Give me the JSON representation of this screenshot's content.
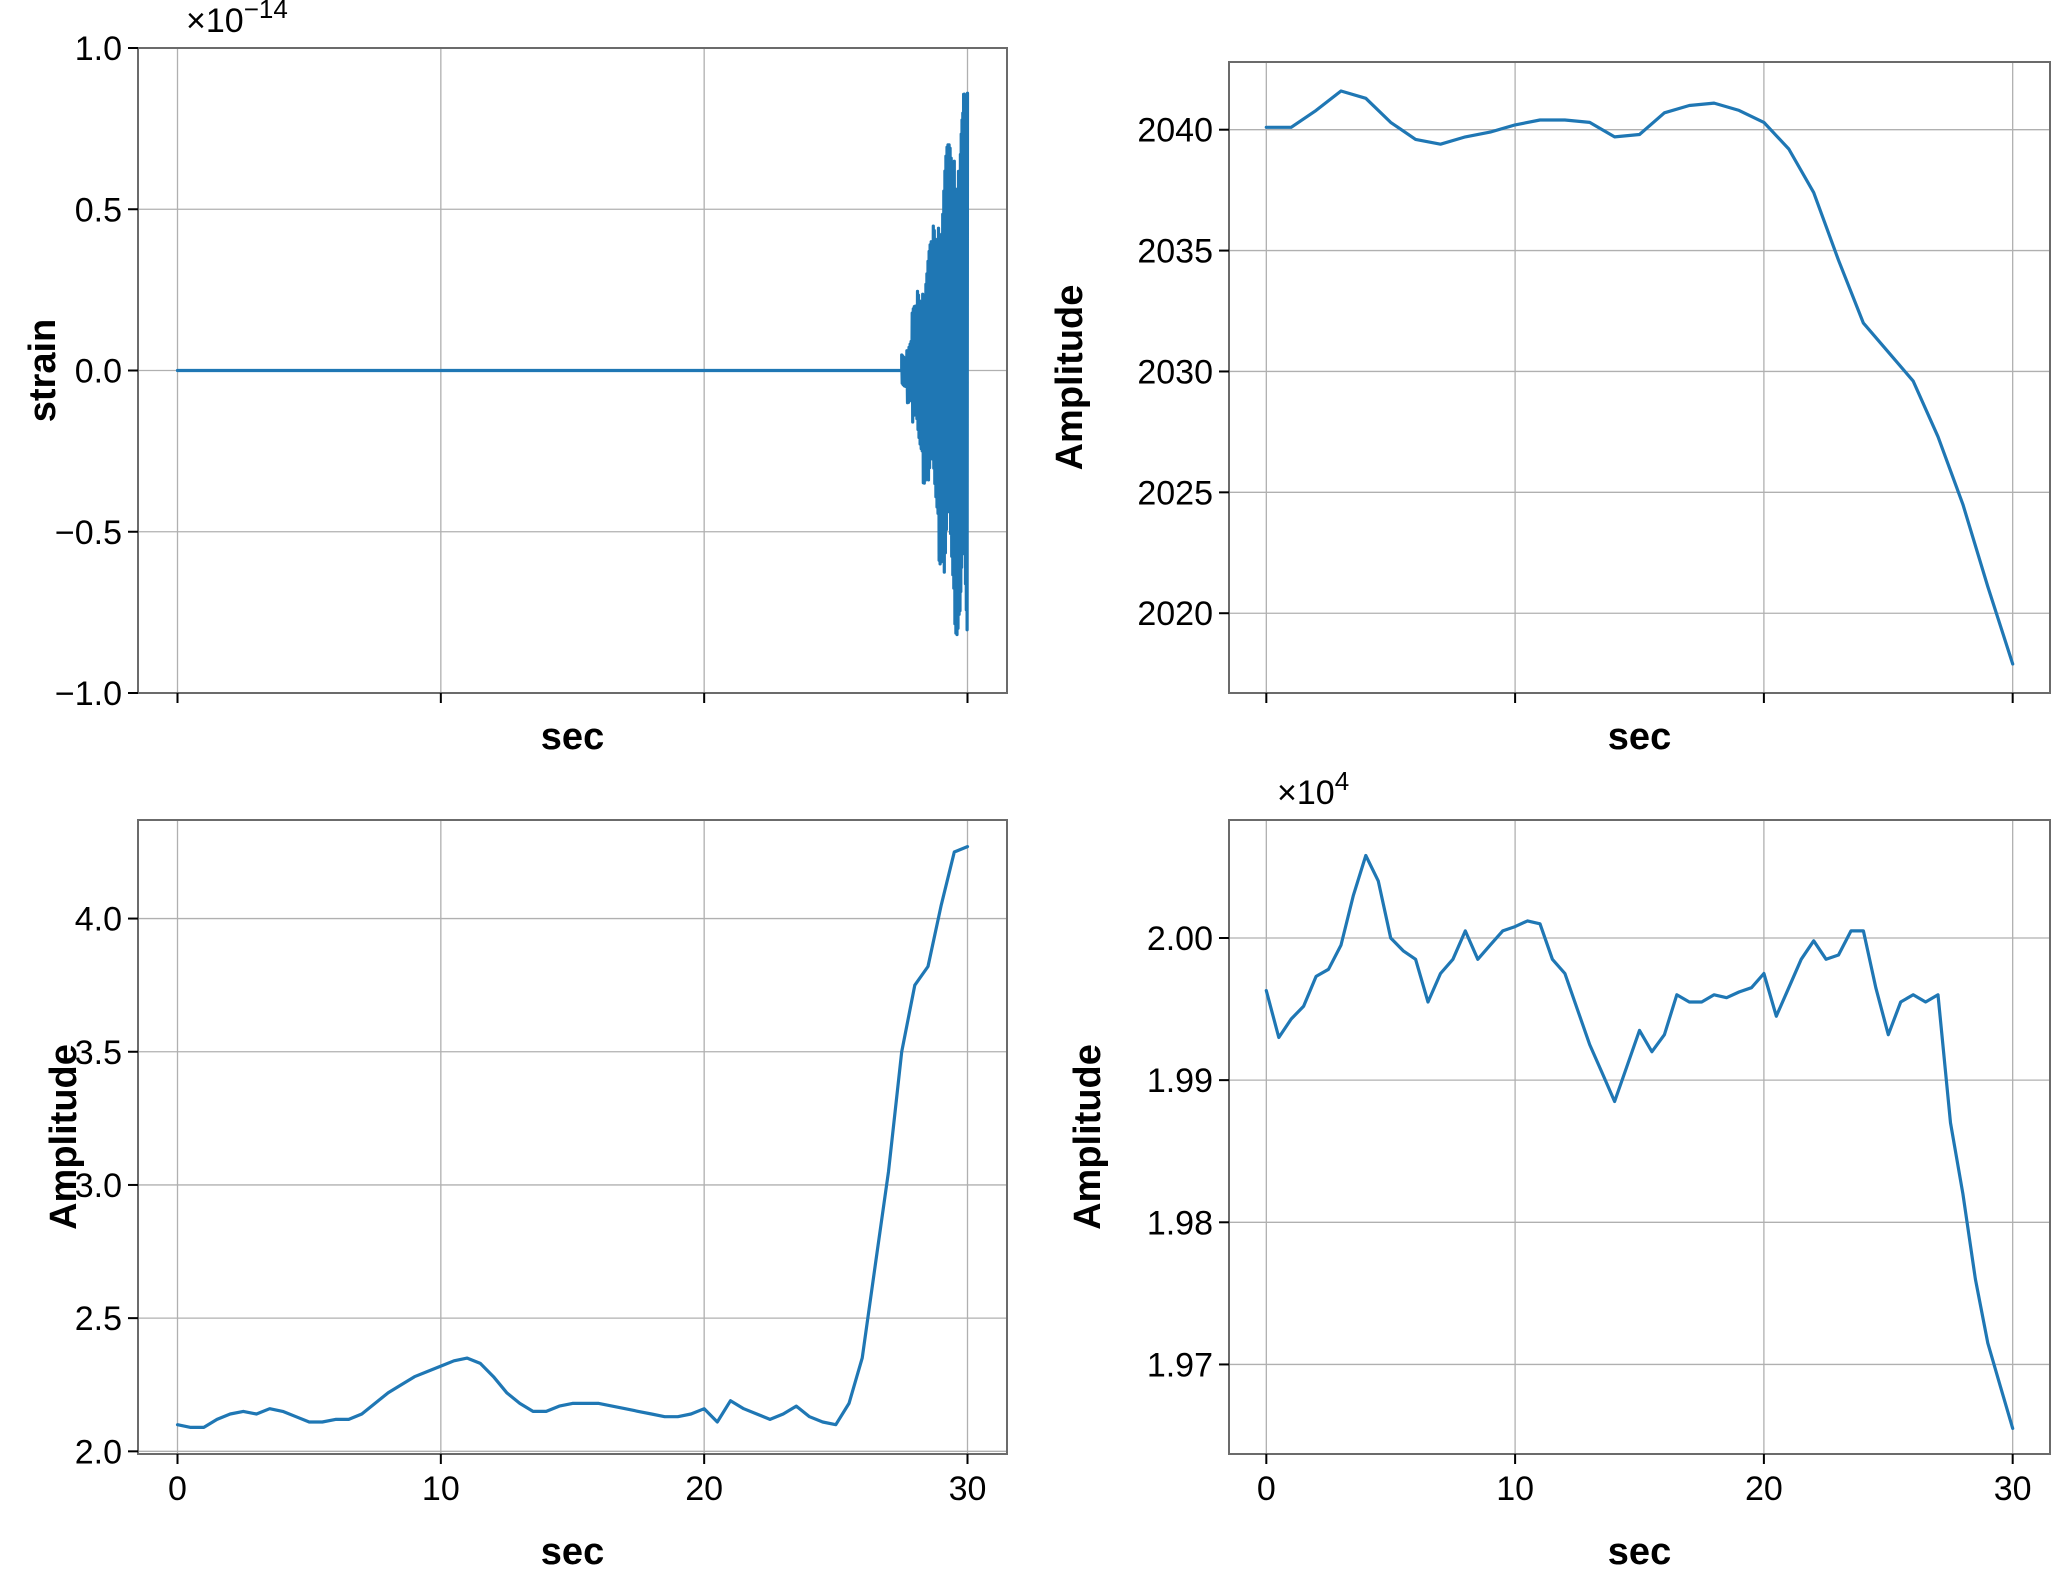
{
  "figure": {
    "colors": {
      "series": "#1f77b4",
      "grid": "#b0b0b0",
      "frame": "#6b6b6b",
      "text": "#000000"
    }
  },
  "chart_data": [
    {
      "type": "line",
      "xlabel": "sec",
      "ylabel": "strain",
      "offset_text": "×10",
      "offset_exponent": "−14",
      "xlim": [
        -1.5,
        31.5
      ],
      "ylim": [
        -1.0,
        1.0
      ],
      "xticks": [
        0,
        10,
        20,
        30
      ],
      "xtick_labels_visible": false,
      "yticks": [
        -1.0,
        -0.5,
        0.0,
        0.5,
        1.0
      ],
      "ytick_labels": [
        "−1.0",
        "−0.5",
        "0.0",
        "0.5",
        "1.0"
      ],
      "grid": true,
      "series": [
        {
          "style": "burst",
          "x": [
            0,
            27.5,
            27.7,
            27.9,
            28.1,
            28.3,
            28.5,
            28.7,
            28.9,
            29.1,
            29.3,
            29.5,
            29.7,
            29.85,
            30.0
          ],
          "y": [
            0.0,
            0.0,
            0.05,
            -0.1,
            0.2,
            -0.25,
            0.35,
            -0.4,
            0.45,
            -0.6,
            0.7,
            -0.7,
            0.82,
            -0.8,
            0.86
          ]
        }
      ]
    },
    {
      "type": "line",
      "xlabel": "sec",
      "ylabel": "Amplitude",
      "xlim": [
        -1.5,
        31.5
      ],
      "ylim": [
        2016.7,
        2042.8
      ],
      "xticks": [
        0,
        10,
        20,
        30
      ],
      "xtick_labels_visible": false,
      "yticks": [
        2020,
        2025,
        2030,
        2035,
        2040
      ],
      "ytick_labels": [
        "2020",
        "2025",
        "2030",
        "2035",
        "2040"
      ],
      "grid": true,
      "series": [
        {
          "x": [
            0,
            1,
            2,
            3,
            4,
            5,
            6,
            7,
            8,
            9,
            10,
            11,
            12,
            13,
            14,
            15,
            16,
            17,
            18,
            19,
            20,
            21,
            22,
            23,
            24,
            25,
            26,
            27,
            28,
            29,
            30
          ],
          "y": [
            2040.1,
            2040.1,
            2040.8,
            2041.6,
            2041.3,
            2040.3,
            2039.6,
            2039.4,
            2039.7,
            2039.9,
            2040.2,
            2040.4,
            2040.4,
            2040.3,
            2039.7,
            2039.8,
            2040.7,
            2041.0,
            2041.1,
            2040.8,
            2040.3,
            2039.2,
            2037.4,
            2034.6,
            2032.0,
            2030.8,
            2029.6,
            2027.3,
            2024.5,
            2021.1,
            2017.9
          ]
        }
      ]
    },
    {
      "type": "line",
      "xlabel": "sec",
      "ylabel": "Amplitude",
      "xlim": [
        -1.5,
        31.5
      ],
      "ylim": [
        1.99,
        4.37
      ],
      "xticks": [
        0,
        10,
        20,
        30
      ],
      "xtick_labels": [
        "0",
        "10",
        "20",
        "30"
      ],
      "yticks": [
        2.0,
        2.5,
        3.0,
        3.5,
        4.0
      ],
      "ytick_labels": [
        "2.0",
        "2.5",
        "3.0",
        "3.5",
        "4.0"
      ],
      "grid": true,
      "series": [
        {
          "x": [
            0,
            0.5,
            1,
            1.5,
            2,
            2.5,
            3,
            3.5,
            4,
            4.5,
            5,
            5.5,
            6,
            6.5,
            7,
            7.5,
            8,
            8.5,
            9,
            9.5,
            10,
            10.5,
            11,
            11.5,
            12,
            12.5,
            13,
            13.5,
            14,
            14.5,
            15,
            15.5,
            16,
            16.5,
            17,
            17.5,
            18,
            18.5,
            19,
            19.5,
            20,
            20.5,
            21,
            21.5,
            22,
            22.5,
            23,
            23.5,
            24,
            24.5,
            25,
            25.5,
            26,
            26.5,
            27,
            27.5,
            28,
            28.5,
            29,
            29.5,
            30
          ],
          "y": [
            2.1,
            2.09,
            2.09,
            2.12,
            2.14,
            2.15,
            2.14,
            2.16,
            2.15,
            2.13,
            2.11,
            2.11,
            2.12,
            2.12,
            2.14,
            2.18,
            2.22,
            2.25,
            2.28,
            2.3,
            2.32,
            2.34,
            2.35,
            2.33,
            2.28,
            2.22,
            2.18,
            2.15,
            2.15,
            2.17,
            2.18,
            2.18,
            2.18,
            2.17,
            2.16,
            2.15,
            2.14,
            2.13,
            2.13,
            2.14,
            2.16,
            2.11,
            2.19,
            2.16,
            2.14,
            2.12,
            2.14,
            2.17,
            2.13,
            2.11,
            2.1,
            2.18,
            2.35,
            2.7,
            3.05,
            3.5,
            3.75,
            3.82,
            4.05,
            4.25,
            4.27
          ]
        }
      ]
    },
    {
      "type": "line",
      "xlabel": "sec",
      "ylabel": "Amplitude",
      "offset_text": "×10",
      "offset_exponent": "4",
      "xlim": [
        -1.5,
        31.5
      ],
      "ylim": [
        19.637,
        20.083
      ],
      "xticks": [
        0,
        10,
        20,
        30
      ],
      "xtick_labels": [
        "0",
        "10",
        "20",
        "30"
      ],
      "yticks": [
        19.7,
        19.8,
        19.9,
        20.0
      ],
      "ytick_labels": [
        "1.97",
        "1.98",
        "1.99",
        "2.00"
      ],
      "grid": true,
      "series": [
        {
          "x": [
            0,
            0.5,
            1,
            1.5,
            2,
            2.5,
            3,
            3.5,
            4,
            4.5,
            5,
            5.5,
            6,
            6.5,
            7,
            7.5,
            8,
            8.5,
            9,
            9.5,
            10,
            10.5,
            11,
            11.5,
            12,
            12.5,
            13,
            13.5,
            14,
            14.5,
            15,
            15.5,
            16,
            16.5,
            17,
            17.5,
            18,
            18.5,
            19,
            19.5,
            20,
            20.5,
            21,
            21.5,
            22,
            22.5,
            23,
            23.5,
            24,
            24.5,
            25,
            25.5,
            26,
            26.5,
            27,
            27.5,
            28,
            28.5,
            29,
            29.5,
            30
          ],
          "y": [
            19.963,
            19.93,
            19.943,
            19.952,
            19.973,
            19.978,
            19.995,
            20.03,
            20.058,
            20.04,
            20.0,
            19.991,
            19.985,
            19.955,
            19.975,
            19.985,
            20.005,
            19.985,
            19.995,
            20.005,
            20.008,
            20.012,
            20.01,
            19.985,
            19.975,
            19.95,
            19.925,
            19.905,
            19.885,
            19.91,
            19.935,
            19.92,
            19.932,
            19.96,
            19.955,
            19.955,
            19.96,
            19.958,
            19.962,
            19.965,
            19.975,
            19.945,
            19.965,
            19.985,
            19.998,
            19.985,
            19.988,
            20.005,
            20.005,
            19.965,
            19.932,
            19.955,
            19.96,
            19.955,
            19.96,
            19.87,
            19.82,
            19.76,
            19.715,
            19.685,
            19.655
          ]
        }
      ]
    }
  ]
}
